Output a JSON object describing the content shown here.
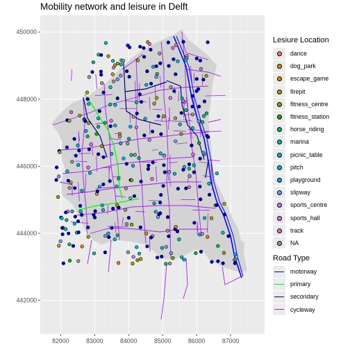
{
  "title": "Mobility network and leisure in Delft",
  "colors": {
    "panel_bg": "#ebebeb",
    "grid_major": "#ffffff",
    "municipality_fill": "#d3d3d3",
    "point_outline": "#000000"
  },
  "axes": {
    "x_ticks": [
      "82000",
      "83000",
      "84000",
      "85000",
      "86000",
      "87000"
    ],
    "y_ticks": [
      "442000",
      "444000",
      "446000",
      "448000",
      "450000"
    ],
    "xlim": [
      81400,
      88000
    ],
    "ylim": [
      441000,
      450500
    ]
  },
  "legend_leisure": {
    "title": "Lesiure Location",
    "items": [
      {
        "label": "dance",
        "color": "#f8766d"
      },
      {
        "label": "dog_park",
        "color": "#e68613"
      },
      {
        "label": "escape_game",
        "color": "#cd9600"
      },
      {
        "label": "firepit",
        "color": "#aba300"
      },
      {
        "label": "fitness_centre",
        "color": "#7cae00"
      },
      {
        "label": "fitness_station",
        "color": "#0cb702"
      },
      {
        "label": "horse_riding",
        "color": "#00be67"
      },
      {
        "label": "marina",
        "color": "#00c19a"
      },
      {
        "label": "picnic_table",
        "color": "#00bfc4"
      },
      {
        "label": "pitch",
        "color": "#00b8e7"
      },
      {
        "label": "playground",
        "color": "#00a9ff"
      },
      {
        "label": "slipway",
        "color": "#8494ff"
      },
      {
        "label": "sports_centre",
        "color": "#c77cff"
      },
      {
        "label": "sports_hall",
        "color": "#ed68ed"
      },
      {
        "label": "track",
        "color": "#ff61cc"
      },
      {
        "label": "NA",
        "color": "#999999"
      }
    ]
  },
  "legend_road": {
    "title": "Road Type",
    "items": [
      {
        "label": "motorway",
        "color": "#0000ff"
      },
      {
        "label": "primary",
        "color": "#00ff00"
      },
      {
        "label": "secondary",
        "color": "#000080"
      },
      {
        "label": "cycleway",
        "color": "#a020f0"
      }
    ]
  }
}
